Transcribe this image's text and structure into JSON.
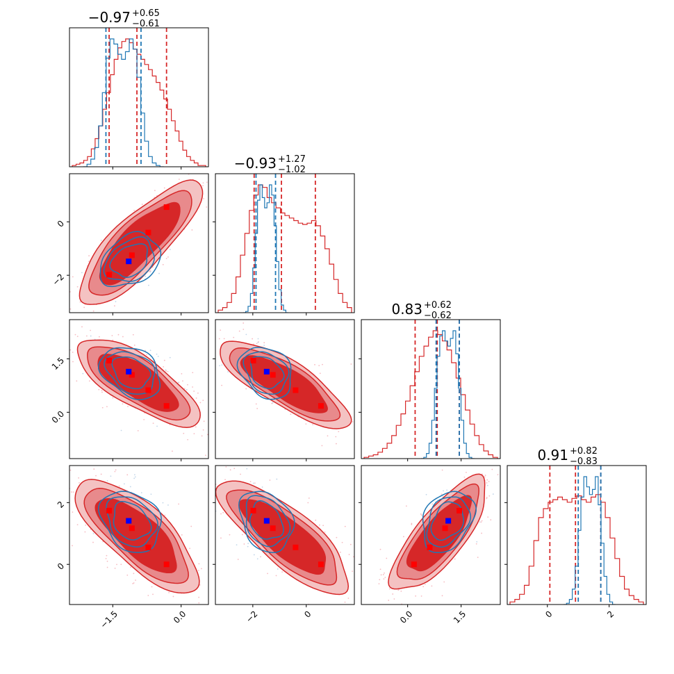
{
  "chart_data": {
    "type": "corner",
    "params": [
      {
        "title_value": "−0.97",
        "err_plus": "+0.65",
        "err_minus": "−0.61",
        "range": [
          -2.45,
          0.6
        ],
        "ticks": [
          -1.5,
          0.0
        ],
        "tick_labels": [
          "−1.5",
          "0.0"
        ]
      },
      {
        "title_value": "−0.93",
        "err_plus": "+1.27",
        "err_minus": "−1.02",
        "range": [
          -3.4,
          1.8
        ],
        "ticks": [
          -2,
          0
        ],
        "tick_labels": [
          "−2",
          "0"
        ]
      },
      {
        "title_value": "0.83",
        "err_plus": "+0.62",
        "err_minus": "−0.62",
        "range": [
          -1.3,
          2.6
        ],
        "ticks": [
          0.0,
          1.5
        ],
        "tick_labels": [
          "0.0",
          "1.5"
        ]
      },
      {
        "title_value": "0.91",
        "err_plus": "+0.82",
        "err_minus": "−0.83",
        "range": [
          -1.3,
          3.2
        ],
        "ticks": [
          0,
          2
        ],
        "tick_labels": [
          "0",
          "2"
        ]
      }
    ],
    "series": [
      {
        "color": "#d62728",
        "quantiles": [
          [
            -1.58,
            -0.97,
            -0.32
          ],
          [
            -1.95,
            -0.93,
            0.34
          ],
          [
            0.21,
            0.83,
            1.45
          ],
          [
            0.08,
            0.91,
            1.73
          ]
        ],
        "markers": [
          [
            -1.58,
            -1.98,
            1.45,
            1.74
          ],
          [
            -1.15,
            -1.48,
            1.14,
            1.41
          ],
          [
            -1.08,
            -1.25,
            1.05,
            1.17
          ],
          [
            -0.72,
            -0.4,
            0.62,
            0.55
          ],
          [
            -0.32,
            0.55,
            0.18,
            0.0
          ]
        ],
        "marker_color": "#ff0000",
        "histograms": [
          [
            0.01,
            0.02,
            0.03,
            0.05,
            0.08,
            0.14,
            0.22,
            0.32,
            0.45,
            0.58,
            0.72,
            0.84,
            0.93,
            0.98,
            1.0,
            0.97,
            0.92,
            0.88,
            0.84,
            0.8,
            0.76,
            0.71,
            0.66,
            0.6,
            0.53,
            0.45,
            0.36,
            0.28,
            0.2,
            0.13,
            0.08,
            0.05,
            0.03,
            0.01,
            0.01
          ],
          [
            0.02,
            0.04,
            0.08,
            0.15,
            0.28,
            0.45,
            0.62,
            0.8,
            0.92,
            1.0,
            0.98,
            0.9,
            0.86,
            0.82,
            0.78,
            0.76,
            0.74,
            0.72,
            0.7,
            0.69,
            0.7,
            0.72,
            0.68,
            0.6,
            0.5,
            0.38,
            0.26,
            0.15,
            0.08,
            0.04
          ],
          [
            0.01,
            0.02,
            0.03,
            0.05,
            0.08,
            0.12,
            0.18,
            0.26,
            0.35,
            0.45,
            0.57,
            0.68,
            0.8,
            0.88,
            0.95,
            1.0,
            0.97,
            0.92,
            0.85,
            0.75,
            0.63,
            0.5,
            0.38,
            0.27,
            0.18,
            0.11,
            0.06,
            0.03,
            0.01
          ],
          [
            0.02,
            0.04,
            0.08,
            0.15,
            0.3,
            0.5,
            0.68,
            0.75,
            0.8,
            0.82,
            0.84,
            0.82,
            0.8,
            0.83,
            0.85,
            0.82,
            0.8,
            0.84,
            0.86,
            0.8,
            0.68,
            0.52,
            0.36,
            0.22,
            0.12,
            0.07,
            0.04,
            0.02
          ]
        ]
      },
      {
        "color": "#1f77b4",
        "quantiles": [
          [
            -1.65,
            null,
            -0.88
          ],
          [
            -1.88,
            null,
            -1.15
          ],
          [
            0.8,
            null,
            1.45
          ],
          [
            1.0,
            null,
            1.73
          ]
        ],
        "markers": [
          [
            -1.15,
            -1.48,
            1.14,
            1.41
          ]
        ],
        "marker_color": "#0000ff",
        "histograms": [
          [
            0.0,
            0.02,
            0.06,
            0.15,
            0.32,
            0.58,
            0.85,
            1.0,
            0.96,
            0.88,
            0.84,
            0.9,
            1.0,
            0.92,
            0.7,
            0.42,
            0.2,
            0.08,
            0.03,
            0.01,
            0.0
          ],
          [
            0.0,
            0.01,
            0.05,
            0.15,
            0.35,
            0.62,
            0.88,
            1.0,
            0.9,
            0.82,
            0.86,
            1.0,
            0.92,
            0.68,
            0.4,
            0.18,
            0.06,
            0.02,
            0.0
          ],
          [
            0.0,
            0.01,
            0.04,
            0.12,
            0.3,
            0.55,
            0.8,
            0.96,
            1.0,
            0.92,
            0.88,
            0.94,
            1.0,
            0.82,
            0.55,
            0.3,
            0.12,
            0.04,
            0.01,
            0.0
          ],
          [
            0.0,
            0.01,
            0.04,
            0.12,
            0.3,
            0.58,
            0.84,
            1.0,
            0.92,
            0.86,
            0.9,
            1.0,
            0.78,
            0.48,
            0.22,
            0.08,
            0.02,
            0.0
          ]
        ]
      }
    ],
    "pairs": [
      {
        "row": 1,
        "col": 0,
        "red_mu": [
          -0.92,
          -0.8
        ],
        "red_sd": [
          0.55,
          0.95
        ],
        "red_rho": 0.82,
        "blue_mu": [
          -1.12,
          -1.45
        ],
        "blue_sd": [
          0.3,
          0.45
        ],
        "blue_rho": 0.3
      },
      {
        "row": 2,
        "col": 0,
        "red_mu": [
          -0.95,
          0.85
        ],
        "red_sd": [
          0.55,
          0.5
        ],
        "red_rho": -0.75,
        "blue_mu": [
          -1.1,
          1.12
        ],
        "blue_sd": [
          0.3,
          0.33
        ],
        "blue_rho": -0.3
      },
      {
        "row": 2,
        "col": 1,
        "red_mu": [
          -0.8,
          0.8
        ],
        "red_sd": [
          1.0,
          0.5
        ],
        "red_rho": -0.8,
        "blue_mu": [
          -1.5,
          1.12
        ],
        "blue_sd": [
          0.45,
          0.33
        ],
        "blue_rho": -0.25
      },
      {
        "row": 3,
        "col": 0,
        "red_mu": [
          -0.95,
          0.95
        ],
        "red_sd": [
          0.55,
          0.75
        ],
        "red_rho": -0.75,
        "blue_mu": [
          -1.1,
          1.4
        ],
        "blue_sd": [
          0.3,
          0.45
        ],
        "blue_rho": -0.25
      },
      {
        "row": 3,
        "col": 1,
        "red_mu": [
          -0.8,
          0.9
        ],
        "red_sd": [
          1.0,
          0.75
        ],
        "red_rho": -0.8,
        "blue_mu": [
          -1.5,
          1.4
        ],
        "blue_sd": [
          0.45,
          0.45
        ],
        "blue_rho": -0.25
      },
      {
        "row": 3,
        "col": 2,
        "red_mu": [
          0.9,
          0.95
        ],
        "red_sd": [
          0.55,
          0.75
        ],
        "red_rho": 0.78,
        "blue_mu": [
          1.12,
          1.4
        ],
        "blue_sd": [
          0.33,
          0.45
        ],
        "blue_rho": 0.3
      }
    ]
  }
}
